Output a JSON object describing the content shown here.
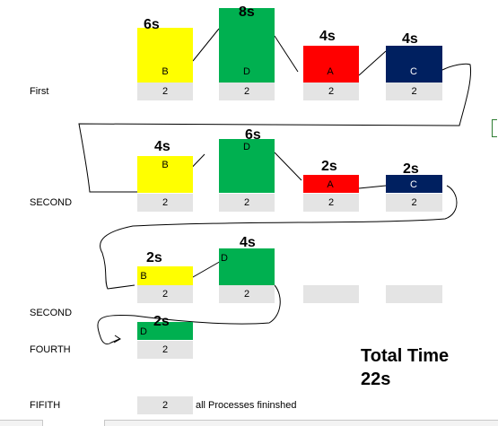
{
  "colors": {
    "B": "#ffff00",
    "D": "#00b050",
    "A": "#ff0000",
    "C": "#002060",
    "cell": "#e4e4e4"
  },
  "rows": {
    "first": {
      "label": "First",
      "blocks": [
        {
          "letter": "B",
          "duration": "6s",
          "cell": "2"
        },
        {
          "letter": "D",
          "duration": "8s",
          "cell": "2"
        },
        {
          "letter": "A",
          "duration": "4s",
          "cell": "2"
        },
        {
          "letter": "C",
          "duration": "4s",
          "cell": "2"
        }
      ]
    },
    "second": {
      "label": "SECOND",
      "blocks": [
        {
          "letter": "B",
          "duration": "4s",
          "cell": "2"
        },
        {
          "letter": "D",
          "duration": "6s",
          "cell": "2"
        },
        {
          "letter": "A",
          "duration": "2s",
          "cell": "2"
        },
        {
          "letter": "C",
          "duration": "2s",
          "cell": "2"
        }
      ]
    },
    "third": {
      "label": "SECOND",
      "blocks": [
        {
          "letter": "B",
          "duration": "2s",
          "cell": "2"
        },
        {
          "letter": "D",
          "duration": "4s",
          "cell": "2"
        }
      ]
    },
    "fourth": {
      "label": "FOURTH",
      "blocks": [
        {
          "letter": "D",
          "duration": "2s",
          "cell": "2"
        }
      ]
    },
    "fifth": {
      "label": "FIFITH",
      "cell": "2",
      "note": "all Processes fininshed"
    }
  },
  "total": {
    "line1": "Total Time",
    "line2": "22s"
  }
}
